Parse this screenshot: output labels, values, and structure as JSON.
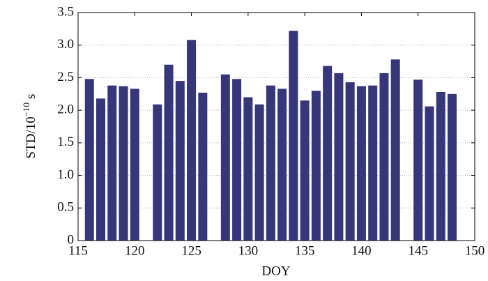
{
  "chart_data": {
    "type": "bar",
    "xlabel": "DOY",
    "ylabel": {
      "base": "STD/10",
      "sup": "−10",
      "unit": "s"
    },
    "x": [
      116,
      117,
      118,
      119,
      120,
      122,
      123,
      124,
      125,
      126,
      128,
      129,
      130,
      131,
      132,
      133,
      134,
      135,
      136,
      137,
      138,
      139,
      140,
      141,
      142,
      143,
      145,
      146,
      147,
      148
    ],
    "values": [
      2.48,
      2.18,
      2.38,
      2.37,
      2.33,
      2.09,
      2.7,
      2.45,
      3.08,
      2.27,
      2.55,
      2.48,
      2.2,
      2.09,
      2.38,
      2.33,
      3.22,
      2.15,
      2.3,
      2.68,
      2.57,
      2.43,
      2.37,
      2.38,
      2.57,
      2.78,
      2.47,
      2.06,
      2.28,
      2.25
    ],
    "color": "#36367a",
    "xlim": [
      115,
      150
    ],
    "xticks": [
      115,
      120,
      125,
      130,
      135,
      140,
      145,
      150
    ],
    "ylim": [
      0,
      3.5
    ],
    "yticks": [
      0,
      0.5,
      {
        "value": 1,
        "label": "1.0"
      },
      1.5,
      {
        "value": 2,
        "label": "2.0"
      },
      2.5,
      {
        "value": 3,
        "label": "3.0"
      },
      3.5
    ],
    "grid": true
  }
}
